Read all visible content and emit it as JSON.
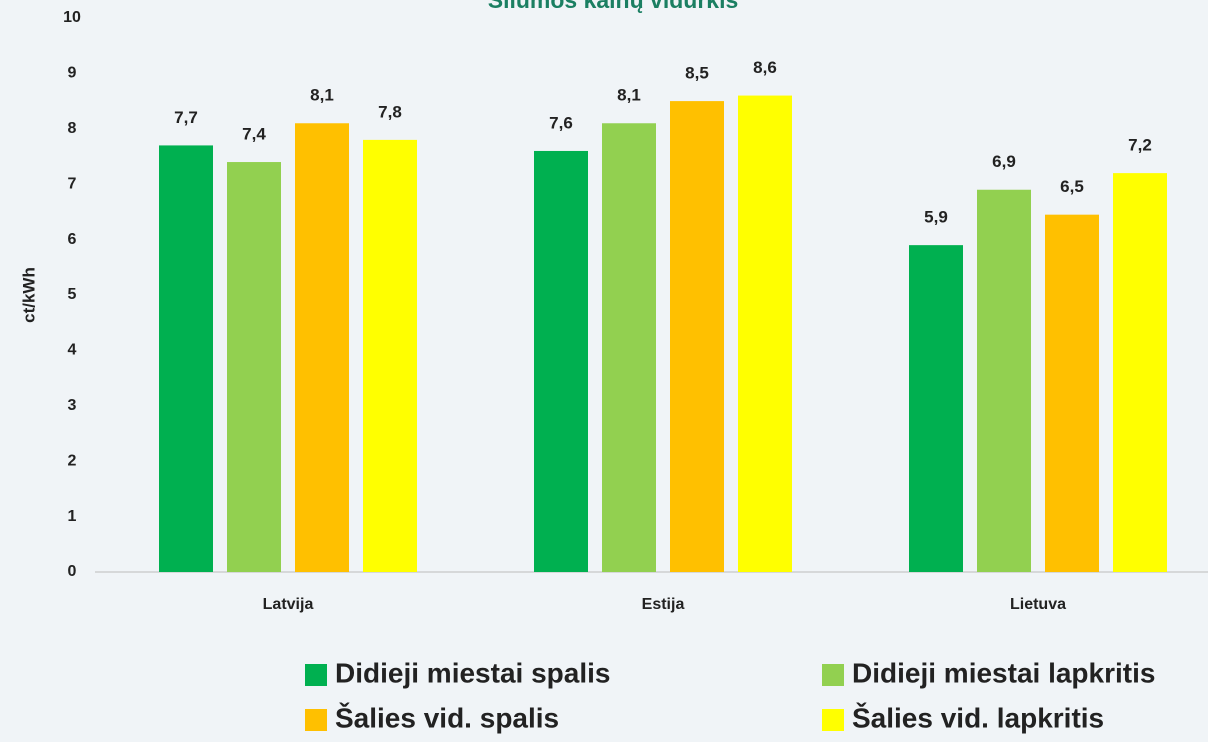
{
  "chart_data": {
    "type": "bar",
    "title": "Šilumos kainų vidurkis",
    "y_label": "ct/kWh",
    "categories": [
      "Latvija",
      "Estija",
      "Lietuva"
    ],
    "series": [
      {
        "name": "Didieji miestai spalis",
        "color": "#00b050",
        "values": [
          7.7,
          7.6,
          5.9
        ],
        "value_labels": [
          "7,7",
          "7,6",
          "5,9"
        ]
      },
      {
        "name": "Didieji miestai lapkritis",
        "color": "#92d050",
        "values": [
          7.4,
          8.1,
          6.9
        ],
        "value_labels": [
          "7,4",
          "8,1",
          "6,9"
        ]
      },
      {
        "name": "Šalies vid. spalis",
        "color": "#ffc000",
        "values": [
          8.1,
          8.5,
          6.45
        ],
        "value_labels": [
          "8,1",
          "8,5",
          "6,5"
        ]
      },
      {
        "name": "Šalies vid. lapkritis",
        "color": "#ffff00",
        "values": [
          7.8,
          8.6,
          7.2
        ],
        "value_labels": [
          "7,8",
          "8,6",
          "7,2"
        ]
      }
    ],
    "ylim": [
      0,
      10
    ],
    "yticks": [
      0,
      1,
      2,
      3,
      4,
      5,
      6,
      7,
      8,
      9,
      10
    ],
    "grid": false
  }
}
